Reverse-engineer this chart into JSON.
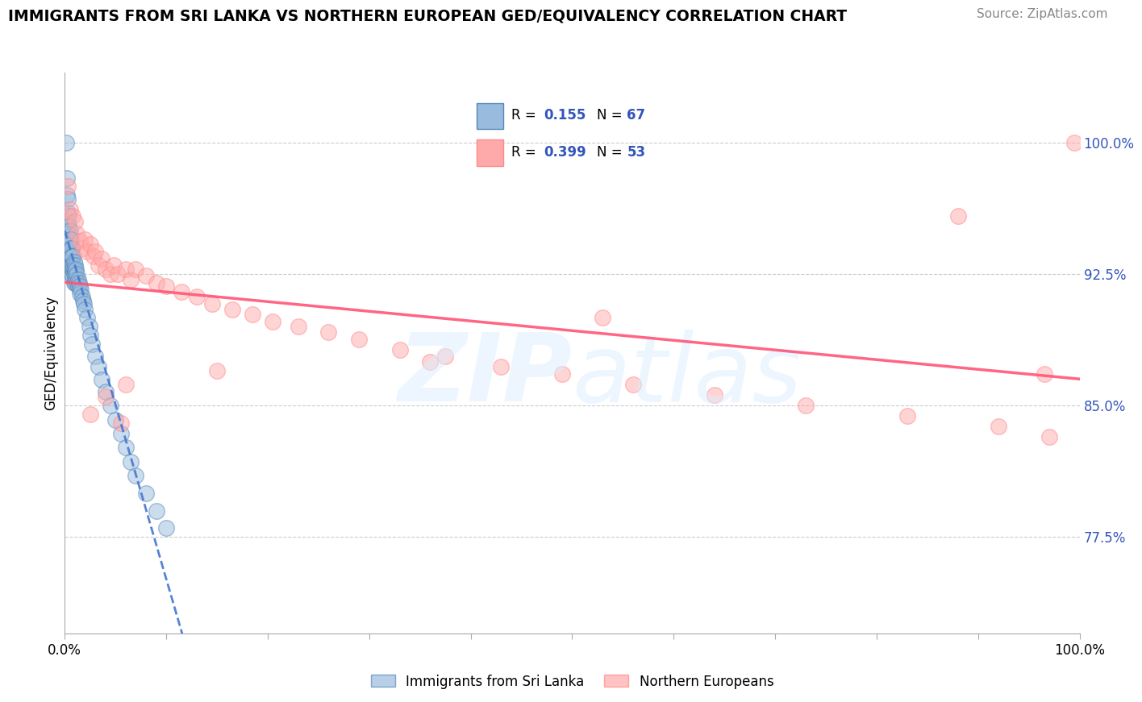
{
  "title": "IMMIGRANTS FROM SRI LANKA VS NORTHERN EUROPEAN GED/EQUIVALENCY CORRELATION CHART",
  "source": "Source: ZipAtlas.com",
  "ylabel": "GED/Equivalency",
  "ytick_labels": [
    "77.5%",
    "85.0%",
    "92.5%",
    "100.0%"
  ],
  "ytick_values": [
    0.775,
    0.85,
    0.925,
    1.0
  ],
  "xtick_labels": [
    "0.0%",
    "100.0%"
  ],
  "xtick_values": [
    0.0,
    1.0
  ],
  "xrange": [
    0.0,
    1.0
  ],
  "yrange": [
    0.72,
    1.04
  ],
  "R_blue": "0.155",
  "N_blue": "67",
  "R_pink": "0.399",
  "N_pink": "53",
  "blue_face": "#99BBDD",
  "blue_edge": "#5588BB",
  "pink_face": "#FFAAAA",
  "pink_edge": "#FF8888",
  "blue_line": "#4477CC",
  "pink_line": "#FF5577",
  "label_color": "#3355BB",
  "blue_label": "Immigrants from Sri Lanka",
  "pink_label": "Northern Europeans",
  "blue_x": [
    0.001,
    0.002,
    0.002,
    0.003,
    0.003,
    0.003,
    0.004,
    0.004,
    0.004,
    0.004,
    0.005,
    0.005,
    0.005,
    0.005,
    0.005,
    0.006,
    0.006,
    0.006,
    0.006,
    0.007,
    0.007,
    0.007,
    0.007,
    0.007,
    0.008,
    0.008,
    0.008,
    0.008,
    0.009,
    0.009,
    0.009,
    0.009,
    0.01,
    0.01,
    0.01,
    0.01,
    0.011,
    0.011,
    0.012,
    0.012,
    0.013,
    0.013,
    0.014,
    0.015,
    0.015,
    0.016,
    0.017,
    0.018,
    0.019,
    0.02,
    0.022,
    0.024,
    0.025,
    0.027,
    0.03,
    0.033,
    0.036,
    0.04,
    0.045,
    0.05,
    0.055,
    0.06,
    0.065,
    0.07,
    0.08,
    0.09,
    0.1
  ],
  "blue_y": [
    1.0,
    0.98,
    0.97,
    0.968,
    0.96,
    0.955,
    0.958,
    0.952,
    0.948,
    0.942,
    0.95,
    0.945,
    0.94,
    0.936,
    0.93,
    0.945,
    0.94,
    0.935,
    0.93,
    0.94,
    0.935,
    0.93,
    0.928,
    0.925,
    0.935,
    0.93,
    0.928,
    0.924,
    0.932,
    0.928,
    0.925,
    0.92,
    0.93,
    0.927,
    0.924,
    0.92,
    0.928,
    0.922,
    0.925,
    0.92,
    0.922,
    0.918,
    0.92,
    0.918,
    0.914,
    0.916,
    0.912,
    0.91,
    0.908,
    0.905,
    0.9,
    0.895,
    0.89,
    0.885,
    0.878,
    0.872,
    0.865,
    0.858,
    0.85,
    0.842,
    0.834,
    0.826,
    0.818,
    0.81,
    0.8,
    0.79,
    0.78
  ],
  "pink_x": [
    0.003,
    0.005,
    0.008,
    0.01,
    0.012,
    0.015,
    0.018,
    0.02,
    0.022,
    0.025,
    0.028,
    0.03,
    0.033,
    0.036,
    0.04,
    0.045,
    0.048,
    0.052,
    0.06,
    0.065,
    0.07,
    0.08,
    0.09,
    0.1,
    0.115,
    0.13,
    0.145,
    0.165,
    0.185,
    0.205,
    0.23,
    0.26,
    0.29,
    0.33,
    0.375,
    0.43,
    0.49,
    0.56,
    0.64,
    0.73,
    0.83,
    0.92,
    0.97,
    0.995,
    0.04,
    0.06,
    0.36,
    0.53,
    0.88,
    0.965,
    0.025,
    0.055,
    0.15
  ],
  "pink_y": [
    0.975,
    0.962,
    0.958,
    0.955,
    0.948,
    0.944,
    0.94,
    0.945,
    0.938,
    0.942,
    0.935,
    0.938,
    0.93,
    0.934,
    0.928,
    0.925,
    0.93,
    0.925,
    0.928,
    0.922,
    0.928,
    0.924,
    0.92,
    0.918,
    0.915,
    0.912,
    0.908,
    0.905,
    0.902,
    0.898,
    0.895,
    0.892,
    0.888,
    0.882,
    0.878,
    0.872,
    0.868,
    0.862,
    0.856,
    0.85,
    0.844,
    0.838,
    0.832,
    1.0,
    0.855,
    0.862,
    0.875,
    0.9,
    0.958,
    0.868,
    0.845,
    0.84,
    0.87
  ]
}
